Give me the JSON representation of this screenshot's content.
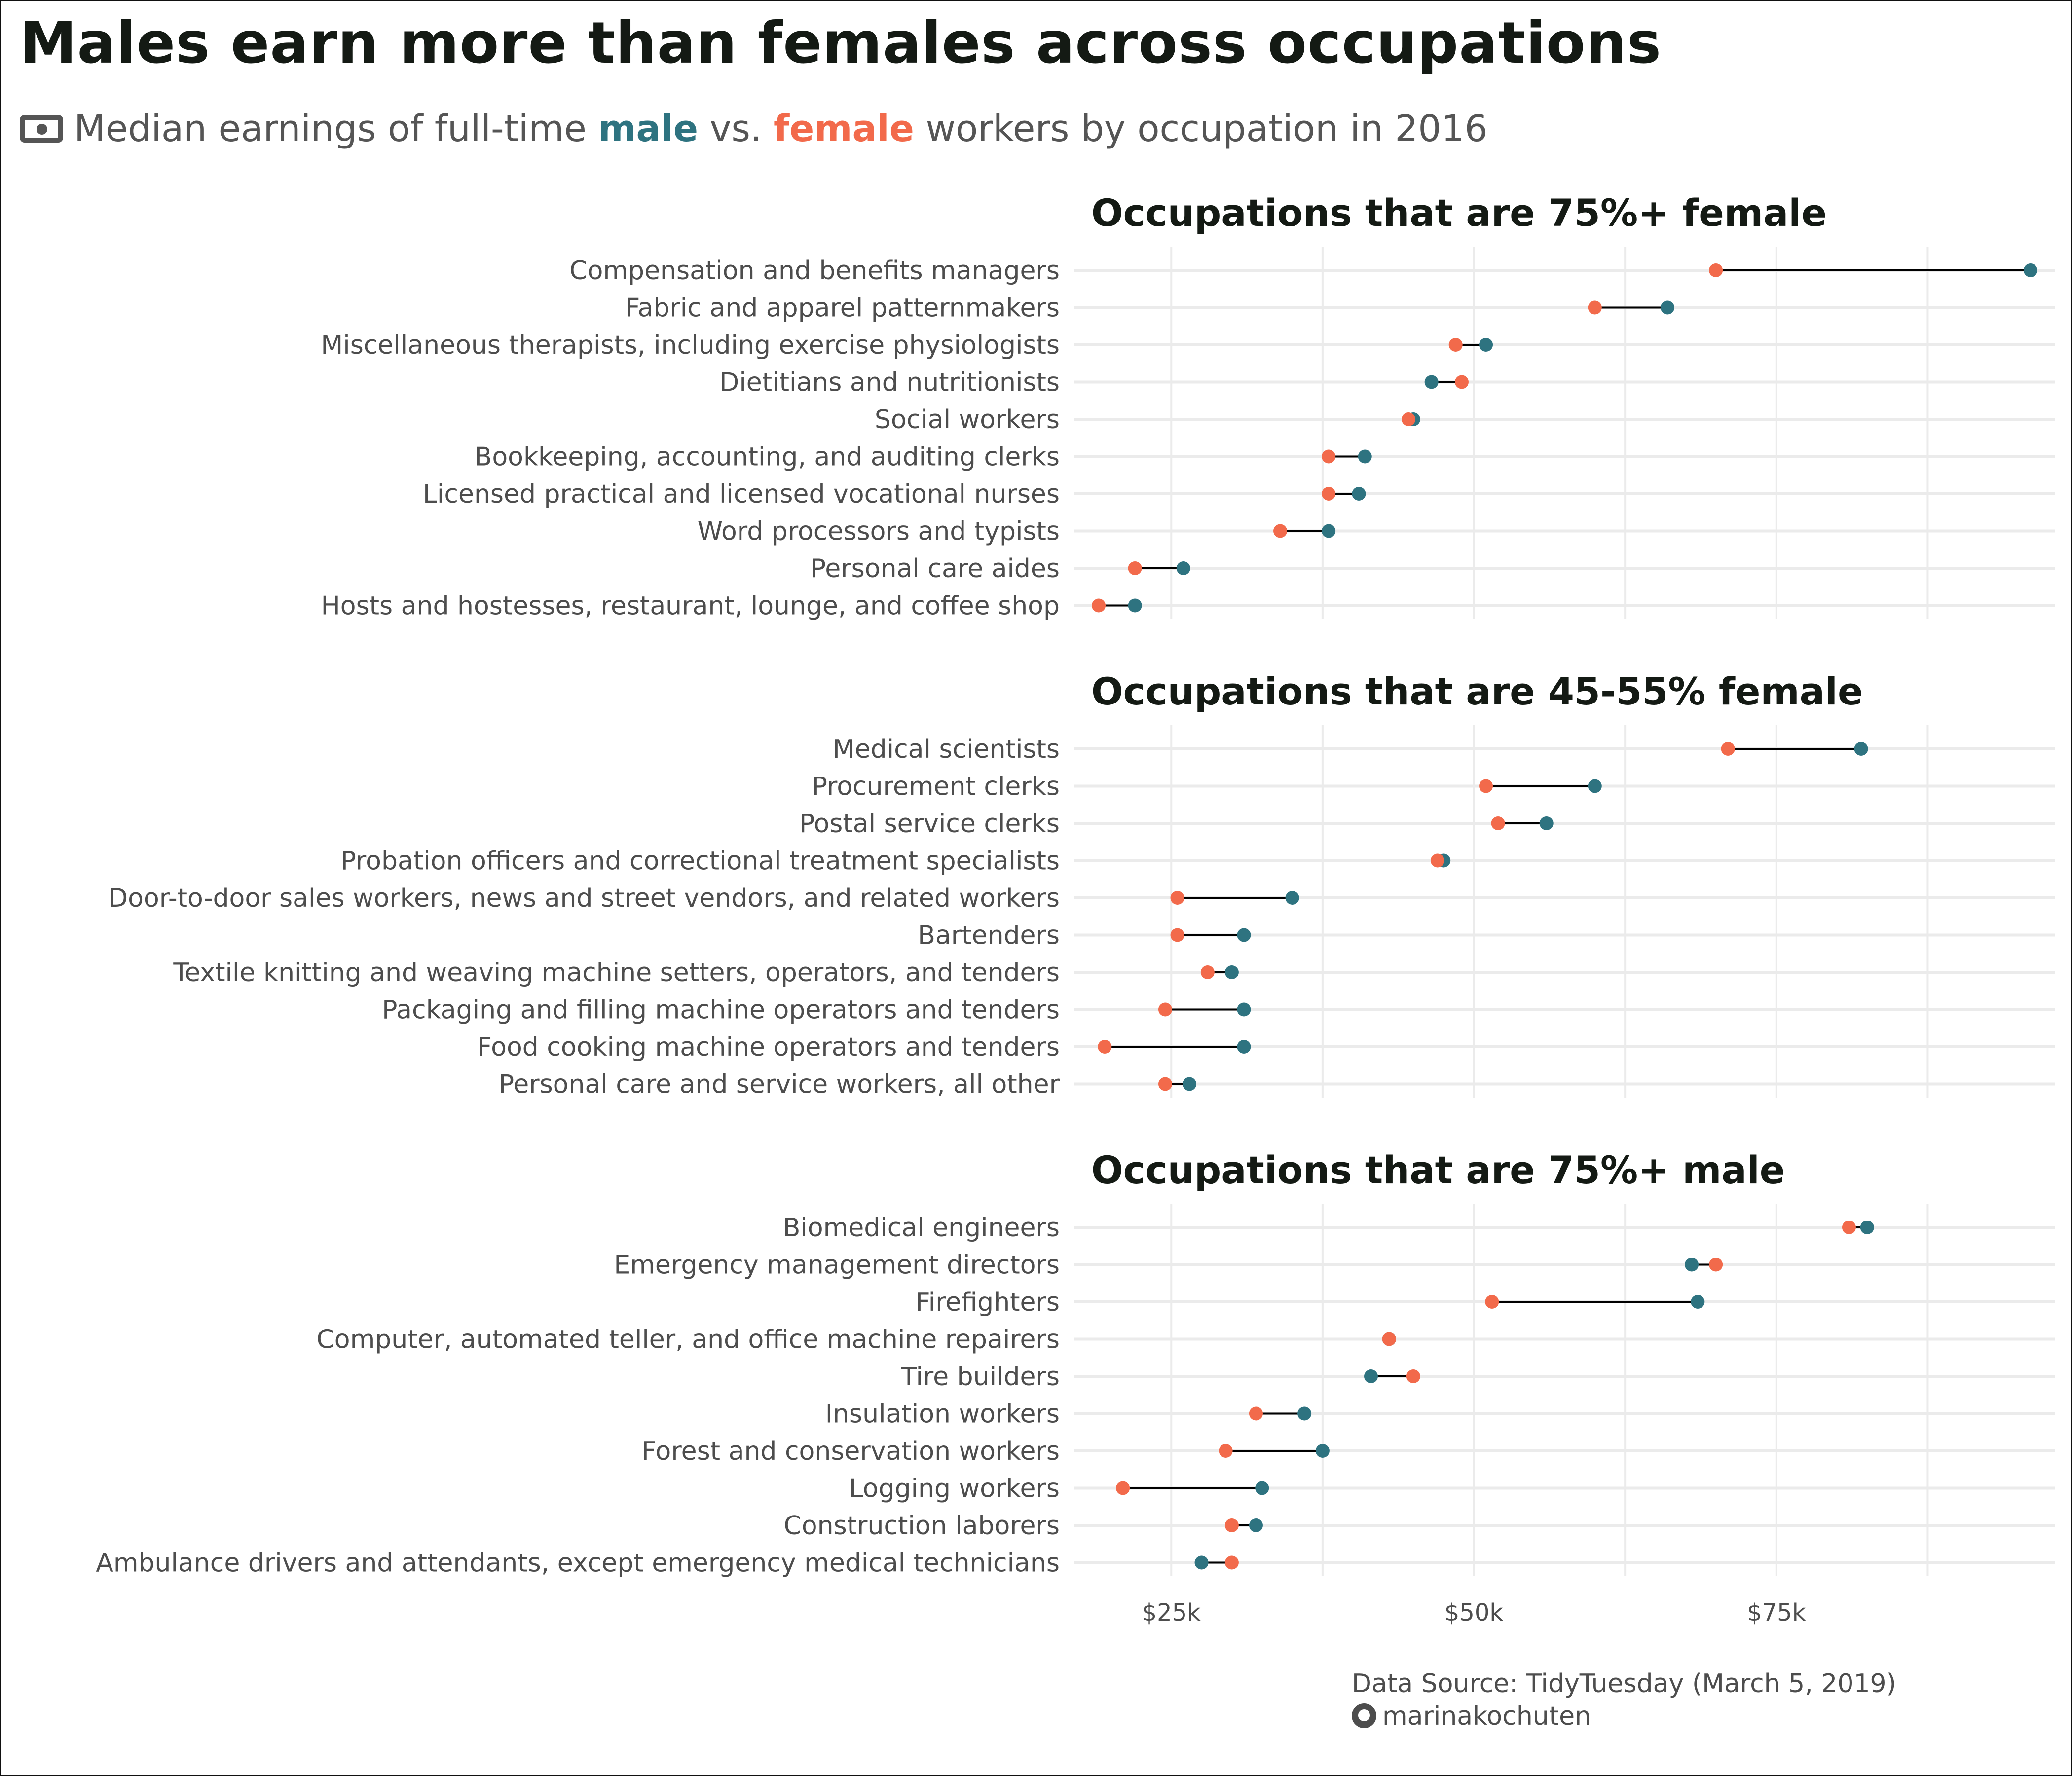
{
  "title": "Males earn more than females across occupations",
  "subtitle": {
    "icon": "money-icon",
    "prefix": "Median earnings of full-time",
    "male_word": "male",
    "mid": "vs.",
    "female_word": "female",
    "suffix": "workers by occupation in 2016"
  },
  "colors": {
    "male": "#2e7380",
    "female": "#f26a4b",
    "segment": "#000000",
    "grid": "#ebebeb"
  },
  "caption": {
    "source": "Data Source: TidyTuesday (March 5, 2019)",
    "author_icon": "github-icon",
    "author": "marinakochuten"
  },
  "chart_data": {
    "type": "dumbbell",
    "x_ticks": [
      {
        "value": 25000,
        "label": "$25k"
      },
      {
        "value": 50000,
        "label": "$50k"
      },
      {
        "value": 75000,
        "label": "$75k"
      }
    ],
    "xlim": [
      17000,
      98000
    ],
    "grid": true,
    "series": [
      {
        "name": "male"
      },
      {
        "name": "female"
      }
    ],
    "panels": [
      {
        "title": "Occupations that are 75%+ female",
        "rows": [
          {
            "label": "Compensation and benefits managers",
            "male": 96000,
            "female": 70000
          },
          {
            "label": "Fabric and apparel patternmakers",
            "male": 66000,
            "female": 60000
          },
          {
            "label": "Miscellaneous therapists, including exercise physiologists",
            "male": 51000,
            "female": 48500
          },
          {
            "label": "Dietitians and nutritionists",
            "male": 46500,
            "female": 49000
          },
          {
            "label": "Social workers",
            "male": 45000,
            "female": 44600
          },
          {
            "label": "Bookkeeping, accounting, and auditing clerks",
            "male": 41000,
            "female": 38000
          },
          {
            "label": "Licensed practical and licensed vocational nurses",
            "male": 40500,
            "female": 38000
          },
          {
            "label": "Word processors and typists",
            "male": 38000,
            "female": 34000
          },
          {
            "label": "Personal care aides",
            "male": 26000,
            "female": 22000
          },
          {
            "label": "Hosts and hostesses, restaurant, lounge, and coffee shop",
            "male": 22000,
            "female": 19000
          }
        ]
      },
      {
        "title": "Occupations that are 45-55% female",
        "rows": [
          {
            "label": "Medical scientists",
            "male": 82000,
            "female": 71000
          },
          {
            "label": "Procurement clerks",
            "male": 60000,
            "female": 51000
          },
          {
            "label": "Postal service clerks",
            "male": 56000,
            "female": 52000
          },
          {
            "label": "Probation officers and correctional treatment specialists",
            "male": 47500,
            "female": 47000
          },
          {
            "label": "Door-to-door sales workers, news and street vendors, and related workers",
            "male": 35000,
            "female": 25500
          },
          {
            "label": "Bartenders",
            "male": 31000,
            "female": 25500
          },
          {
            "label": "Textile knitting and weaving machine setters, operators, and tenders",
            "male": 30000,
            "female": 28000
          },
          {
            "label": "Packaging and filling machine operators and tenders",
            "male": 31000,
            "female": 24500
          },
          {
            "label": "Food cooking machine operators and tenders",
            "male": 31000,
            "female": 19500
          },
          {
            "label": "Personal care and service workers, all other",
            "male": 26500,
            "female": 24500
          }
        ]
      },
      {
        "title": "Occupations that are 75%+ male",
        "rows": [
          {
            "label": "Biomedical engineers",
            "male": 82500,
            "female": 81000
          },
          {
            "label": "Emergency management directors",
            "male": 68000,
            "female": 70000
          },
          {
            "label": "Firefighters",
            "male": 68500,
            "female": 51500
          },
          {
            "label": "Computer, automated teller, and office machine repairers",
            "male": 43000,
            "female": 43000
          },
          {
            "label": "Tire builders",
            "male": 41500,
            "female": 45000
          },
          {
            "label": "Insulation workers",
            "male": 36000,
            "female": 32000
          },
          {
            "label": "Forest and conservation workers",
            "male": 37500,
            "female": 29500
          },
          {
            "label": "Logging workers",
            "male": 32500,
            "female": 21000
          },
          {
            "label": "Construction laborers",
            "male": 32000,
            "female": 30000
          },
          {
            "label": "Ambulance drivers and attendants, except emergency medical technicians",
            "male": 27500,
            "female": 30000
          }
        ]
      }
    ]
  }
}
